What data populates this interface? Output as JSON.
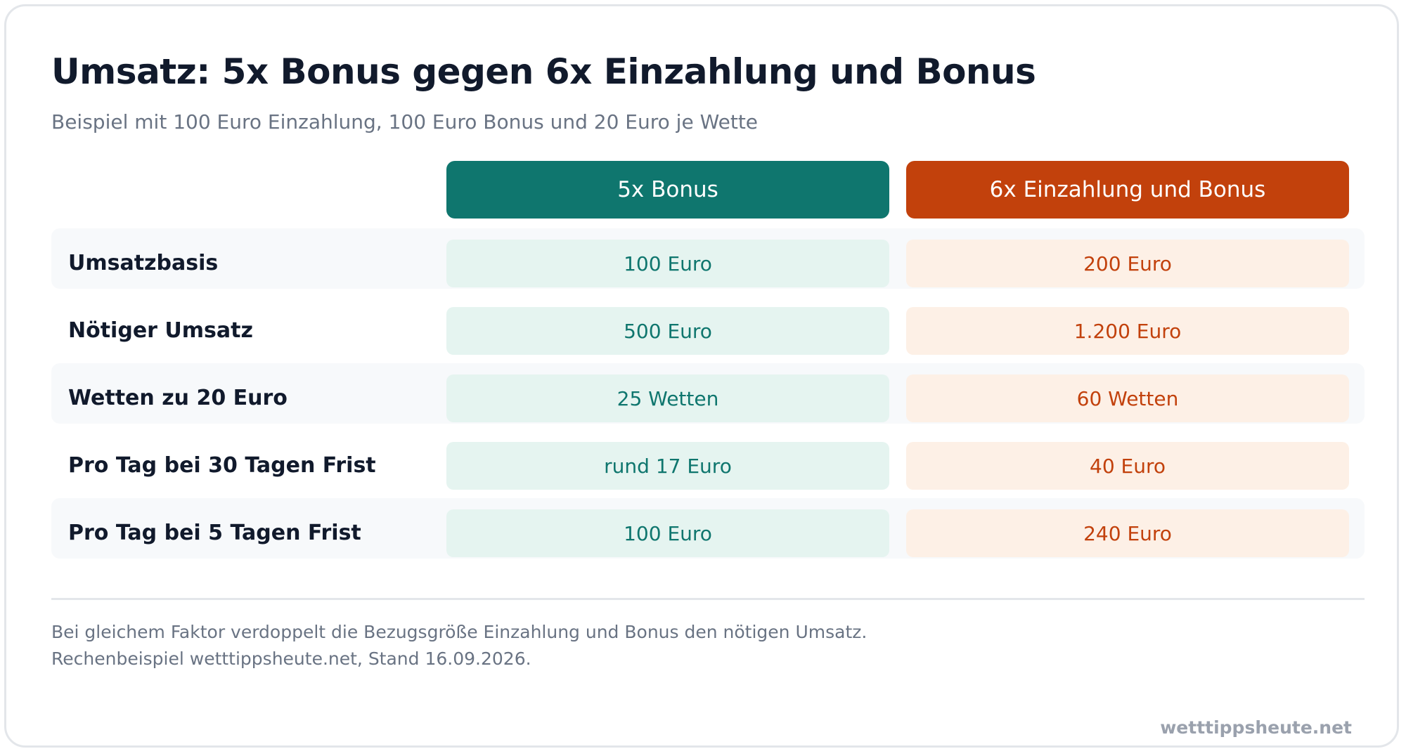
{
  "chart_data": {
    "type": "table",
    "title": "Umsatz: 5x Bonus gegen 6x Einzahlung und Bonus",
    "subtitle": "Beispiel mit 100 Euro Einzahlung, 100 Euro Bonus und 20 Euro je Wette",
    "columns": [
      "5x Bonus",
      "6x Einzahlung und Bonus"
    ],
    "column_colors": [
      "#0f766e",
      "#c2410c"
    ],
    "rows": [
      {
        "label": "Umsatzbasis",
        "values": [
          "100 Euro",
          "200 Euro"
        ]
      },
      {
        "label": "Nötiger Umsatz",
        "values": [
          "500 Euro",
          "1.200 Euro"
        ]
      },
      {
        "label": "Wetten zu 20 Euro",
        "values": [
          "25 Wetten",
          "60 Wetten"
        ]
      },
      {
        "label": "Pro Tag bei 30 Tagen Frist",
        "values": [
          "rund 17 Euro",
          "40 Euro"
        ]
      },
      {
        "label": "Pro Tag bei 5 Tagen Frist",
        "values": [
          "100 Euro",
          "240 Euro"
        ]
      }
    ],
    "notes": [
      "Bei gleichem Faktor verdoppelt die Bezugsgröße Einzahlung und Bonus den nötigen Umsatz.",
      "Rechenbeispiel wetttippsheute.net, Stand 16.09.2026."
    ],
    "brand": "wetttippsheute.net"
  }
}
